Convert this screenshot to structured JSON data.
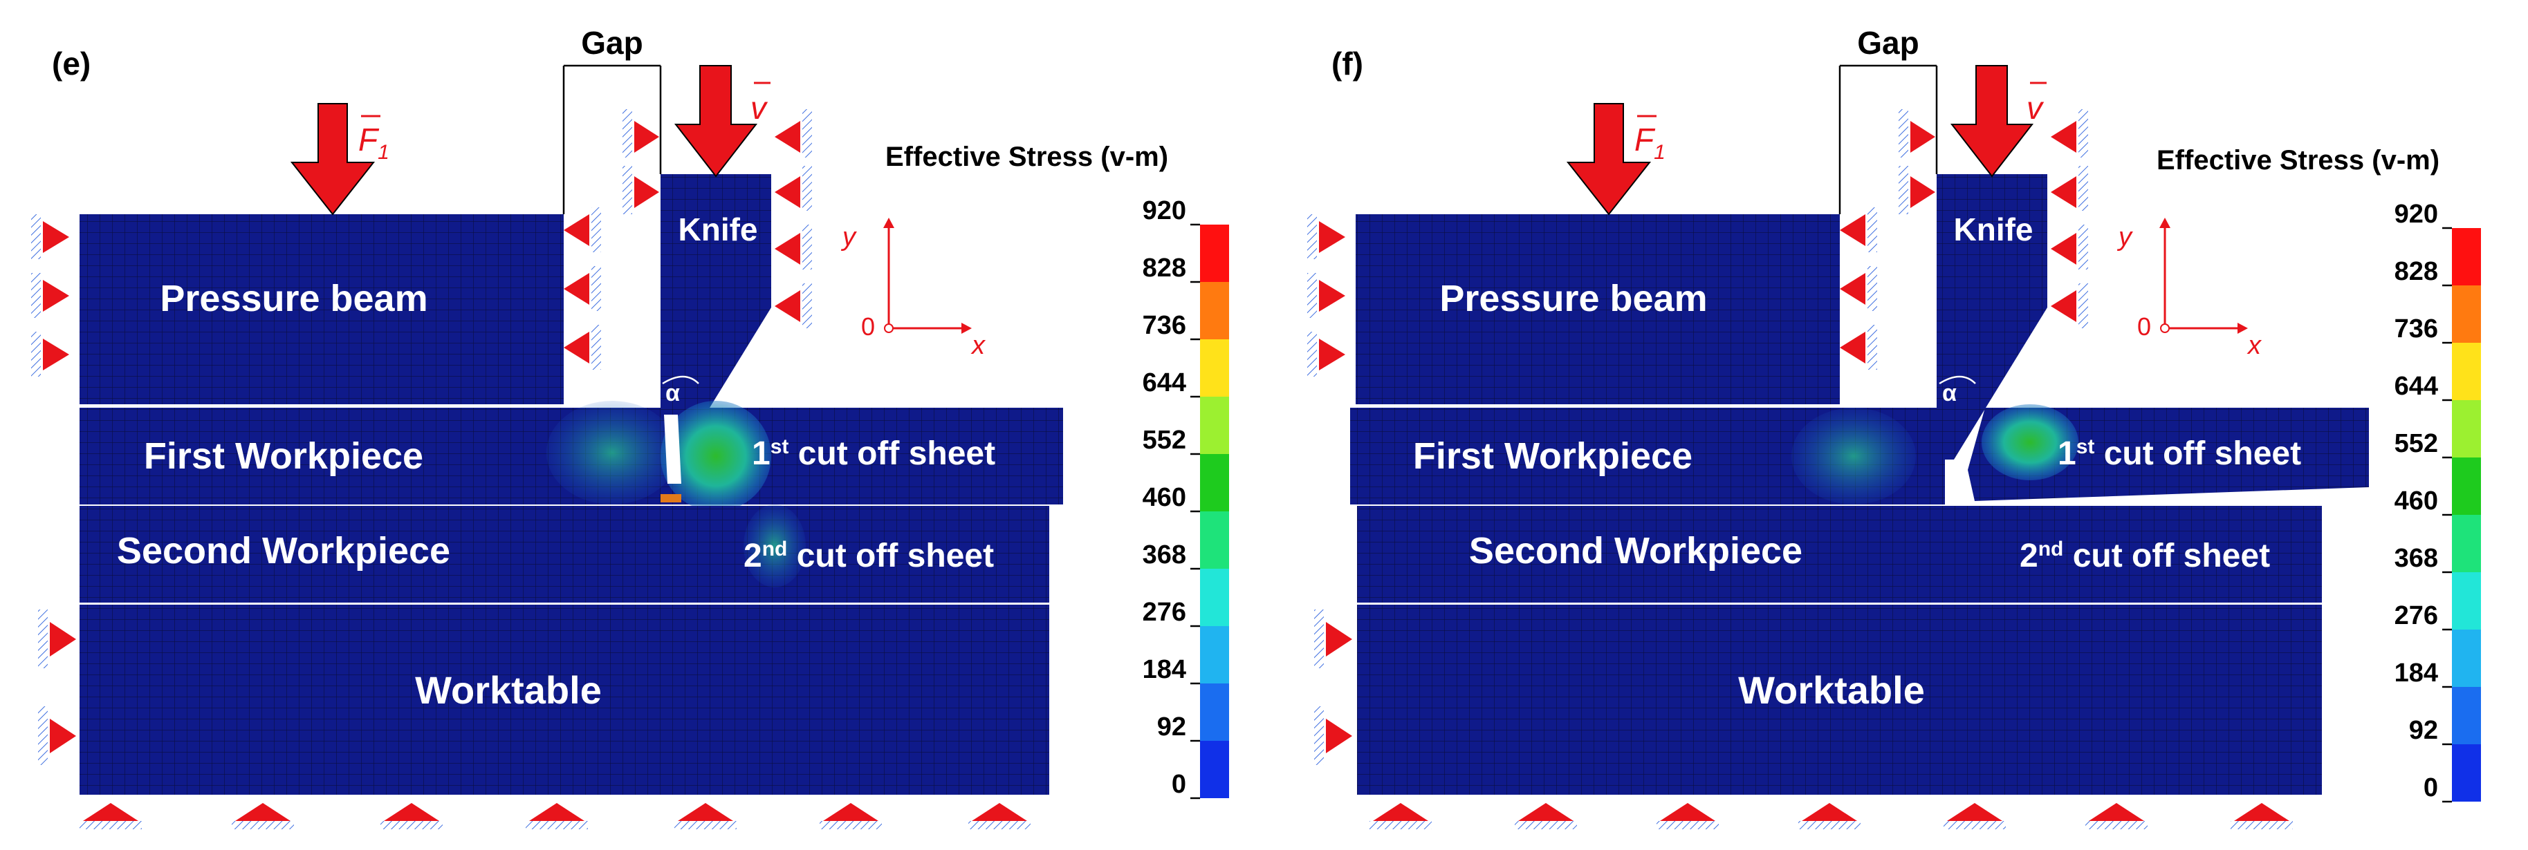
{
  "panels": [
    {
      "label": "(e)",
      "gap_label": "Gap",
      "force_symbol": "F",
      "force_subscript": "1",
      "velocity_symbol": "v",
      "knife_label": "Knife",
      "pressure_beam_label": "Pressure beam",
      "first_workpiece_label": "First Workpiece",
      "second_workpiece_label": "Second Workpiece",
      "worktable_label": "Worktable",
      "first_cut_sup": "st",
      "first_cut_num": "1",
      "first_cut_text": " cut off sheet",
      "second_cut_sup": "nd",
      "second_cut_num": "2",
      "second_cut_text": " cut off sheet",
      "angle_symbol": "α",
      "axis_y": "y",
      "axis_x": "x",
      "axis_origin": "0"
    },
    {
      "label": "(f)",
      "gap_label": "Gap",
      "force_symbol": "F",
      "force_subscript": "1",
      "velocity_symbol": "v",
      "knife_label": "Knife",
      "pressure_beam_label": "Pressure beam",
      "first_workpiece_label": "First Workpiece",
      "second_workpiece_label": "Second Workpiece",
      "worktable_label": "Worktable",
      "first_cut_sup": "st",
      "first_cut_num": "1",
      "first_cut_text": " cut off sheet",
      "second_cut_sup": "nd",
      "second_cut_num": "2",
      "second_cut_text": " cut off sheet",
      "angle_symbol": "α",
      "axis_y": "y",
      "axis_x": "x",
      "axis_origin": "0"
    }
  ],
  "legend": {
    "title": "Effective Stress (v-m)",
    "ticks": [
      "920",
      "828",
      "736",
      "644",
      "552",
      "460",
      "368",
      "276",
      "184",
      "92",
      "0"
    ],
    "colors_top_to_bottom": [
      "#ff1010",
      "#ff7a10",
      "#ffe21a",
      "#9cf030",
      "#1ecb1e",
      "#1ee37a",
      "#22e6d8",
      "#20b4f0",
      "#1a6df0",
      "#1030e8"
    ]
  },
  "colors": {
    "mesh": "#0f1a8a",
    "mesh_line": "#0a0e40",
    "arrow_red": "#e8141b",
    "hatch": "#3f6fe0"
  }
}
